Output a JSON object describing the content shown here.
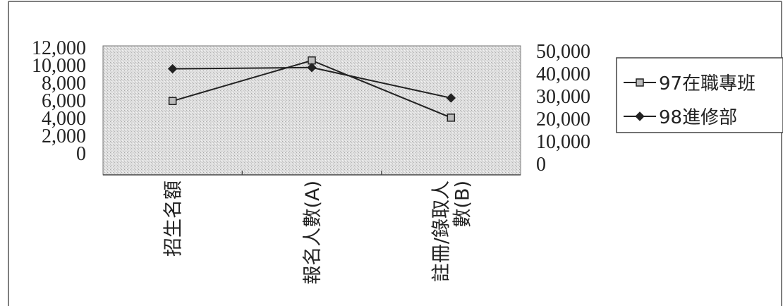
{
  "chart_data": {
    "type": "line",
    "categories": [
      "招生名額",
      "報名人數(A)",
      "註冊/錄取人數(B)"
    ],
    "category_lines": [
      [
        "招生名額"
      ],
      [
        "報名人數(A)"
      ],
      [
        "註冊/錄取人",
        "數(B)"
      ]
    ],
    "y_left": {
      "ticks": [
        "12,000",
        "10,000",
        "8,000",
        "6,000",
        "4,000",
        "2,000",
        "0"
      ],
      "range": [
        0,
        12000
      ]
    },
    "y_right": {
      "ticks": [
        "50,000",
        "40,000",
        "30,000",
        "20,000",
        "10,000",
        "0"
      ],
      "range": [
        0,
        50000
      ]
    },
    "series": [
      {
        "name": "97在職專班",
        "axis": "left",
        "marker": "square",
        "values": [
          7100,
          11000,
          5500
        ]
      },
      {
        "name": "98進修部",
        "axis": "right",
        "marker": "diamond",
        "values": [
          42500,
          43000,
          30800
        ]
      }
    ],
    "legend_position": "right",
    "plot_background": "stippled-gray",
    "line_color": "#222222"
  }
}
